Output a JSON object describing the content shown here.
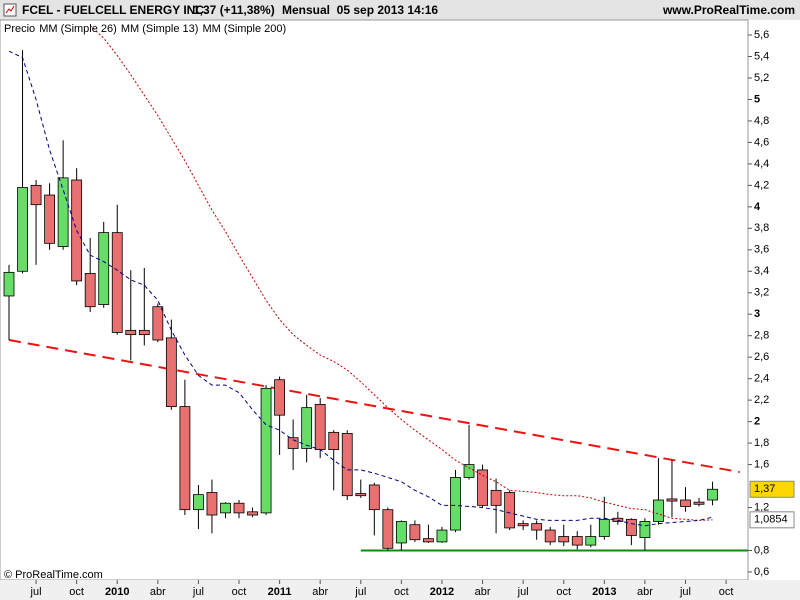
{
  "chart_data": {
    "type": "candlestick",
    "title": "FCEL - FUELCELL ENERGY INC.",
    "price_change": "1,37 (+11,38%)",
    "period": "Mensual  05 sep 2013 14:16",
    "source": "www.ProRealTime.com",
    "footer": "© ProRealTime.com",
    "categories": [
      null,
      null,
      "jul",
      null,
      null,
      "oct",
      null,
      null,
      "2010",
      null,
      null,
      "abr",
      null,
      null,
      "jul",
      null,
      null,
      "oct",
      null,
      null,
      "2011",
      null,
      null,
      "abr",
      null,
      null,
      "jul",
      null,
      null,
      "oct",
      null,
      null,
      "2012",
      null,
      null,
      "abr",
      null,
      null,
      "jul",
      null,
      null,
      "oct",
      null,
      null,
      "2013",
      null,
      null,
      "abr",
      null,
      null,
      "jul",
      null,
      null,
      "oct"
    ],
    "series": [
      {
        "name": "Precio",
        "up_color": "#66dd66",
        "down_color": "#e87070",
        "open": [
          3.17,
          3.4,
          4.2,
          4.11,
          3.63,
          4.25,
          3.38,
          3.09,
          3.76,
          2.85,
          2.85,
          3.07,
          2.78,
          2.14,
          1.18,
          1.34,
          1.15,
          1.24,
          1.16,
          1.15,
          2.39,
          1.85,
          1.75,
          2.16,
          1.9,
          1.89,
          1.33,
          1.41,
          1.18,
          0.87,
          1.04,
          0.91,
          0.88,
          0.99,
          1.48,
          1.55,
          1.36,
          1.34,
          1.05,
          1.05,
          0.99,
          0.93,
          0.93,
          0.85,
          0.93,
          1.1,
          1.09,
          0.92,
          1.07,
          1.28,
          1.27,
          1.25,
          1.27,
          null
        ],
        "high": [
          3.46,
          5.46,
          4.25,
          4.22,
          4.62,
          4.36,
          3.71,
          3.86,
          4.02,
          3.41,
          3.43,
          3.1,
          2.95,
          2.39,
          1.41,
          1.46,
          1.25,
          1.27,
          1.2,
          2.34,
          2.42,
          2.02,
          2.25,
          2.22,
          1.92,
          1.92,
          1.46,
          1.43,
          1.2,
          1.08,
          1.08,
          1.04,
          1.02,
          1.55,
          1.97,
          1.6,
          1.47,
          1.36,
          1.08,
          1.08,
          1.02,
          1.04,
          0.98,
          1.04,
          1.3,
          1.16,
          1.1,
          1.1,
          1.66,
          1.64,
          1.39,
          1.29,
          1.44,
          null
        ],
        "low": [
          2.76,
          3.38,
          3.46,
          3.6,
          3.6,
          3.27,
          3.02,
          3.06,
          2.81,
          2.57,
          2.71,
          2.74,
          2.11,
          1.13,
          1.0,
          0.96,
          1.1,
          1.1,
          1.11,
          1.13,
          1.69,
          1.55,
          1.62,
          1.66,
          1.36,
          1.27,
          1.29,
          0.94,
          0.8,
          0.8,
          0.88,
          0.87,
          0.87,
          0.97,
          1.46,
          1.2,
          0.96,
          0.99,
          0.99,
          0.9,
          0.85,
          0.84,
          0.81,
          0.83,
          0.9,
          1.04,
          0.85,
          0.8,
          1.04,
          1.11,
          1.16,
          1.21,
          1.22,
          null
        ],
        "close": [
          3.39,
          4.18,
          4.02,
          3.66,
          4.27,
          3.31,
          3.07,
          3.76,
          2.83,
          2.81,
          2.81,
          2.76,
          2.14,
          1.18,
          1.32,
          1.13,
          1.24,
          1.15,
          1.13,
          2.31,
          2.06,
          1.75,
          2.13,
          1.74,
          1.74,
          1.31,
          1.31,
          1.18,
          0.82,
          1.07,
          0.9,
          0.88,
          0.99,
          1.48,
          1.6,
          1.22,
          1.22,
          1.01,
          1.03,
          0.99,
          0.88,
          0.88,
          0.85,
          0.93,
          1.09,
          1.07,
          0.94,
          1.07,
          1.27,
          1.26,
          1.21,
          1.23,
          1.37,
          null
        ],
        "value_labels": [
          null,
          null,
          null,
          null,
          null,
          null,
          null,
          null,
          null,
          null,
          null,
          null,
          null,
          null,
          null,
          null,
          null,
          null,
          null,
          null,
          null,
          null,
          null,
          null,
          null,
          null,
          null,
          null,
          null,
          null,
          null,
          null,
          null,
          null,
          null,
          null,
          null,
          null,
          null,
          null,
          null,
          null,
          null,
          null,
          null,
          null,
          null,
          null,
          null,
          null,
          null,
          null,
          "1,37",
          null
        ],
        "label_color": "#ffd700"
      },
      {
        "name": "MM (Simple 26)",
        "color": "#c00000",
        "dash": "dotted",
        "values": [
          null,
          null,
          null,
          null,
          null,
          null,
          5.69,
          5.57,
          5.41,
          5.23,
          5.04,
          4.85,
          4.64,
          4.43,
          4.2,
          3.97,
          3.77,
          3.55,
          3.34,
          3.13,
          2.95,
          2.81,
          2.71,
          2.62,
          2.56,
          2.48,
          2.37,
          2.25,
          2.13,
          2.02,
          1.92,
          1.83,
          1.74,
          1.64,
          1.57,
          1.5,
          1.44,
          1.36,
          1.35,
          1.34,
          1.32,
          1.31,
          1.31,
          1.29,
          1.25,
          1.22,
          1.19,
          1.18,
          1.14,
          1.1,
          1.09,
          1.08,
          1.0854,
          null
        ],
        "value_labels": [
          null,
          null,
          null,
          null,
          null,
          null,
          null,
          null,
          null,
          null,
          null,
          null,
          null,
          null,
          null,
          null,
          null,
          null,
          null,
          null,
          null,
          null,
          null,
          null,
          null,
          null,
          null,
          null,
          null,
          null,
          null,
          null,
          null,
          null,
          null,
          null,
          null,
          null,
          null,
          null,
          null,
          null,
          null,
          null,
          null,
          null,
          null,
          null,
          null,
          null,
          null,
          null,
          "1,0854",
          null
        ],
        "label_color": "#ffffff"
      },
      {
        "name": "MM (Simple 13)",
        "color": "#000080",
        "dash": "dashed",
        "values": [
          5.45,
          5.39,
          5.0,
          4.53,
          4.16,
          3.78,
          3.55,
          3.49,
          3.41,
          3.32,
          3.27,
          3.13,
          2.85,
          2.62,
          2.43,
          2.34,
          2.34,
          2.27,
          2.11,
          1.97,
          1.92,
          1.83,
          1.78,
          1.74,
          1.64,
          1.55,
          1.55,
          1.52,
          1.48,
          1.44,
          1.36,
          1.3,
          1.22,
          1.22,
          1.21,
          1.2,
          1.18,
          1.15,
          1.12,
          1.09,
          1.08,
          1.08,
          1.08,
          1.1,
          1.1,
          1.08,
          1.05,
          1.03,
          1.05,
          1.06,
          1.07,
          1.08,
          1.11,
          null
        ]
      },
      {
        "name": "MM (Simple 200)",
        "color": "#c00000",
        "dash": "dotted",
        "values": [
          null,
          null,
          null,
          null,
          null,
          null,
          null,
          null,
          null,
          null,
          null,
          null,
          null,
          null,
          null,
          null,
          null,
          null,
          null,
          null,
          null,
          null,
          null,
          null,
          null,
          null,
          null,
          null,
          null,
          null,
          null,
          null,
          null,
          null,
          null,
          null,
          null,
          null,
          null,
          null,
          null,
          null,
          null,
          null,
          null,
          null,
          null,
          null,
          null,
          null,
          null,
          null,
          null,
          null
        ]
      }
    ],
    "trendlines": [
      {
        "color": "#ee1111",
        "dash": "dashed",
        "x": [
          0,
          54
        ],
        "y": [
          2.76,
          1.53
        ]
      },
      {
        "color": "#118811",
        "x": [
          26,
          54.6
        ],
        "y": [
          0.8,
          0.8
        ]
      }
    ],
    "ylim": [
      0.525,
      5.74
    ],
    "yticks": [
      {
        "value": 0.6,
        "label": "0,6"
      },
      {
        "value": 0.8,
        "label": "0,8"
      },
      {
        "value": 1.2,
        "label": "1,2"
      },
      {
        "value": 1.6,
        "label": "1,6"
      },
      {
        "value": 1.8,
        "label": "1,8"
      },
      2,
      {
        "value": 2.2,
        "label": "2,2"
      },
      {
        "value": 2.4,
        "label": "2,4"
      },
      {
        "value": 2.6,
        "label": "2,6"
      },
      {
        "value": 2.8,
        "label": "2,8"
      },
      3,
      {
        "value": 3.2,
        "label": "3,2"
      },
      {
        "value": 3.4,
        "label": "3,4"
      },
      {
        "value": 3.6,
        "label": "3,6"
      },
      {
        "value": 3.8,
        "label": "3,8"
      },
      4,
      {
        "value": 4.2,
        "label": "4,2"
      },
      {
        "value": 4.4,
        "label": "4,4"
      },
      {
        "value": 4.6,
        "label": "4,6"
      },
      {
        "value": 4.8,
        "label": "4,8"
      },
      5,
      {
        "value": 5.2,
        "label": "5,2"
      },
      {
        "value": 5.4,
        "label": "5,4"
      },
      {
        "value": 5.6,
        "label": "5,6"
      }
    ],
    "grid": false
  }
}
